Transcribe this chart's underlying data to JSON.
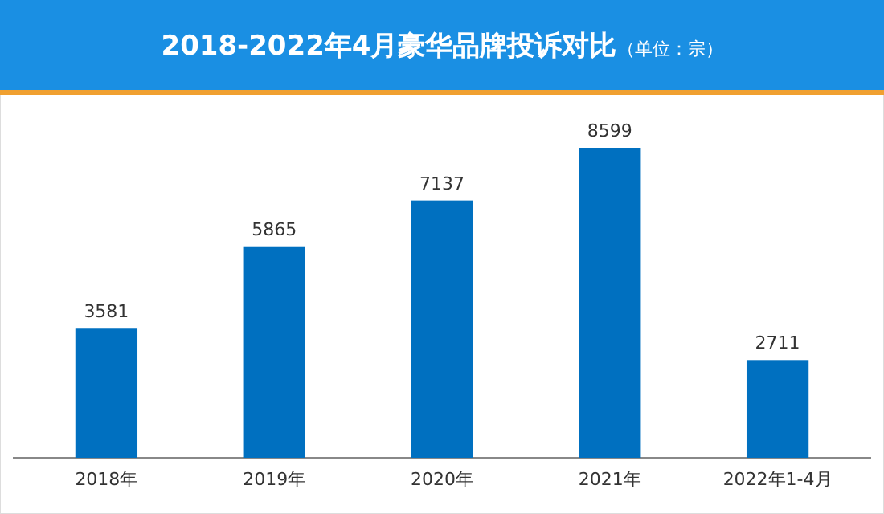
{
  "chart_data": {
    "type": "bar",
    "title": "2018-2022年4月豪华品牌投诉对比",
    "subtitle": "（单位：宗）",
    "categories": [
      "2018年",
      "2019年",
      "2020年",
      "2021年",
      "2022年1-4月"
    ],
    "values": [
      3581,
      5865,
      7137,
      8599,
      2711
    ],
    "color": "#0070c0",
    "data_labels": true
  }
}
